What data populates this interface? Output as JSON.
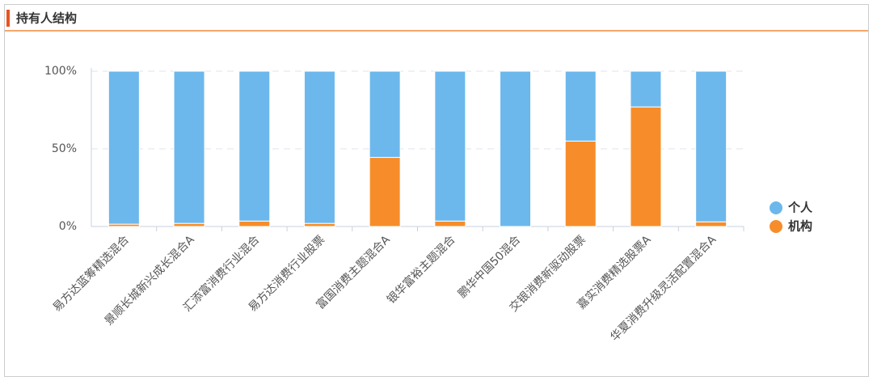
{
  "chart_data": {
    "type": "stacked-bar",
    "title": "持有人结构",
    "categories": [
      "易方达蓝筹精选混合",
      "景顺长城新兴成长混合A",
      "汇添富消费行业混合",
      "易方达消费行业股票",
      "富国消费主题混合A",
      "银华富裕主题混合",
      "鹏华中国50混合",
      "交银消费新驱动股票",
      "嘉实消费精选股票A",
      "华夏消费升级灵活配置混合A"
    ],
    "series": [
      {
        "name": "个人",
        "color": "#6cb8ec",
        "values": [
          98.5,
          98,
          96.5,
          98,
          55.5,
          96.5,
          100,
          45,
          23,
          97
        ]
      },
      {
        "name": "机构",
        "color": "#f78d2a",
        "values": [
          1.5,
          2,
          3.5,
          2,
          44.5,
          3.5,
          0,
          55,
          77,
          3
        ]
      }
    ],
    "ylim": [
      0,
      100
    ],
    "yticks": [
      {
        "value": 0,
        "label": "0%"
      },
      {
        "value": 50,
        "label": "50%"
      },
      {
        "value": 100,
        "label": "100%"
      }
    ],
    "grid": true,
    "legend": "right"
  }
}
